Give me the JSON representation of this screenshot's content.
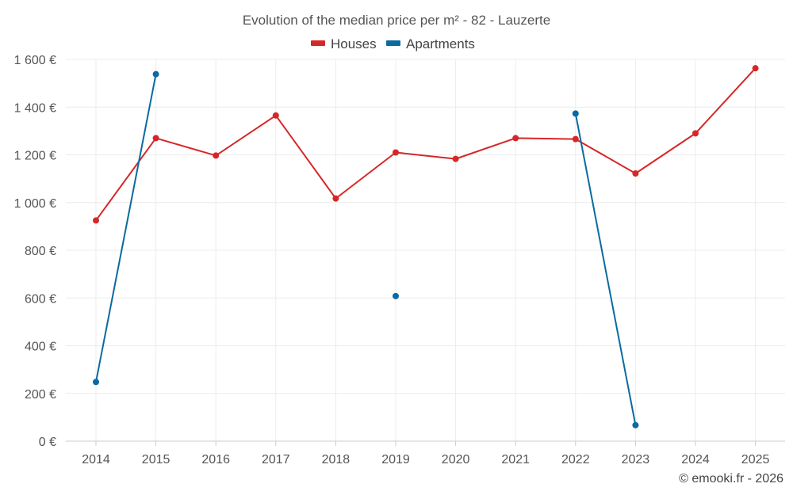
{
  "chart_data": {
    "type": "line",
    "title": "Evolution of the median price per m² - 82 - Lauzerte",
    "xlabel": "",
    "ylabel": "",
    "categories": [
      "2014",
      "2015",
      "2016",
      "2017",
      "2018",
      "2019",
      "2020",
      "2021",
      "2022",
      "2023",
      "2024",
      "2025"
    ],
    "ylim": [
      0,
      1600
    ],
    "yticks": [
      0,
      200,
      400,
      600,
      800,
      1000,
      1200,
      1400,
      1600
    ],
    "ytick_labels": [
      "0 €",
      "200 €",
      "400 €",
      "600 €",
      "800 €",
      "1 000 €",
      "1 200 €",
      "1 400 €",
      "1 600 €"
    ],
    "grid": true,
    "legend_position": "top-center",
    "series": [
      {
        "name": "Houses",
        "color": "#d62728",
        "values": [
          925,
          1270,
          1197,
          1365,
          1017,
          1210,
          1183,
          1270,
          1266,
          1122,
          1290,
          1563
        ]
      },
      {
        "name": "Apartments",
        "color": "#0a6aa1",
        "values": [
          248,
          1538,
          null,
          null,
          null,
          608,
          null,
          null,
          1373,
          67,
          null,
          null
        ]
      }
    ]
  },
  "credit": "© emooki.fr - 2026"
}
